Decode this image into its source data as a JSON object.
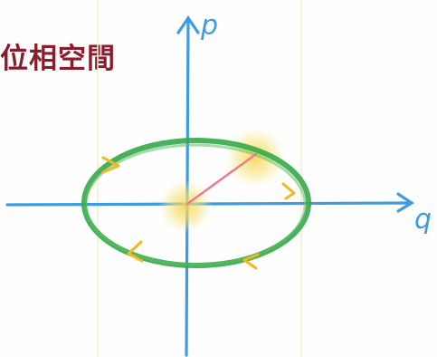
{
  "title": "位相空間",
  "axes": {
    "horizontal_label": "q",
    "vertical_label": "p"
  },
  "colors": {
    "title": "#8a1c2c",
    "axes": "#3d9be0",
    "orbit": "#35a84a",
    "direction_arrows": "#f3b81f",
    "radius_line": "#ee7a88",
    "glow": "#f7e37a"
  }
}
